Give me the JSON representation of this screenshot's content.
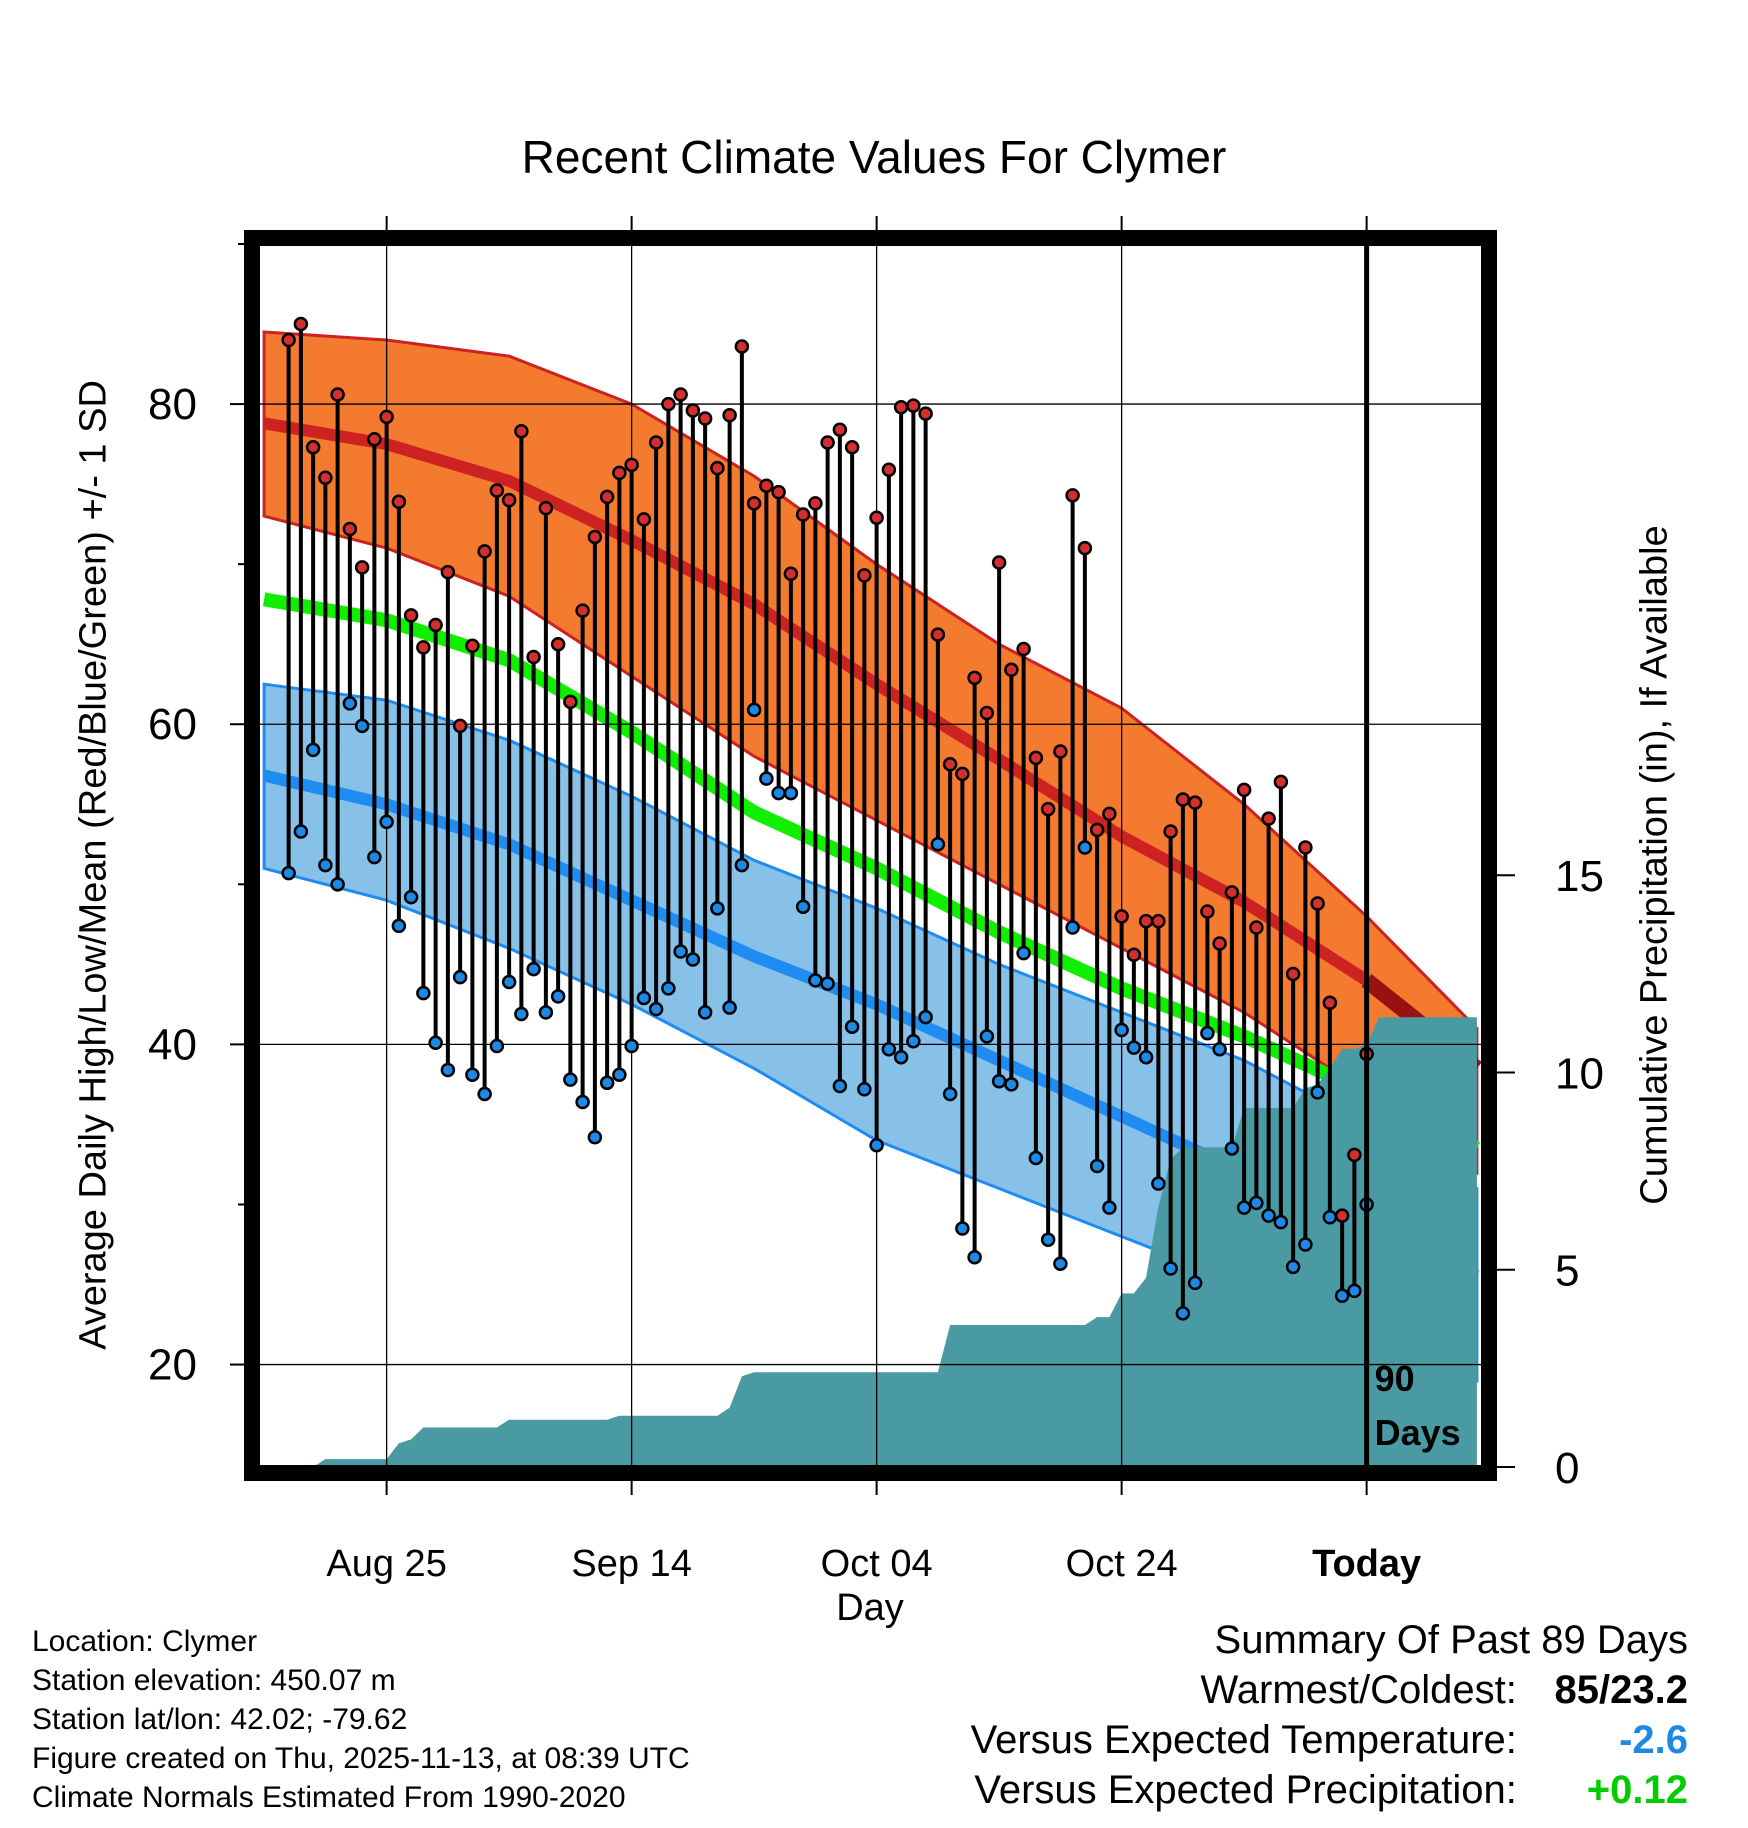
{
  "chart_data": {
    "type": "line",
    "title": "Recent Climate Values For Clymer",
    "ylabel": "Average Daily High/Low/Mean (Red/Blue/Green) +/- 1 SD",
    "y2label": "Cumulative Precipitation (in), If Available",
    "xlabel": "Day",
    "ylim": [
      13.6,
      90
    ],
    "y2lim": [
      0,
      31
    ],
    "xlim": [
      -90.5,
      9.5
    ],
    "yticks": [
      20,
      40,
      60,
      80
    ],
    "y2ticks": [
      0,
      5,
      10,
      15
    ],
    "xticks": [
      {
        "day": -80,
        "label": "Aug 25"
      },
      {
        "day": -60,
        "label": "Sep 14"
      },
      {
        "day": -40,
        "label": "Oct 04"
      },
      {
        "day": -20,
        "label": "Oct 24"
      },
      {
        "day": 0,
        "label": "Today"
      }
    ],
    "today_label": "90 Days",
    "colors": {
      "high_band": "#f47a30",
      "high_line": "#cc2222",
      "high_today": "#991111",
      "low_band": "#87c1e8",
      "low_line": "#1e8cf0",
      "mean_line": "#11ee00",
      "precip": "#4a9aa3",
      "high_dot": "#d32f2f",
      "low_dot": "#1e88e5"
    },
    "normal_days": [
      -90,
      -80,
      -70,
      -60,
      -50,
      -40,
      -30,
      -20,
      -10,
      0,
      9
    ],
    "normal_high": [
      78.8,
      77.5,
      75.2,
      71.5,
      67.5,
      62.5,
      57.8,
      53.0,
      48.9,
      44.0,
      38.5
    ],
    "normal_high_upper": [
      84.5,
      84.0,
      83.0,
      80.0,
      75.5,
      70.0,
      65.0,
      61.0,
      55.0,
      48.0,
      41.0
    ],
    "normal_high_lower": [
      73.0,
      71.0,
      68.0,
      63.0,
      58.0,
      54.0,
      50.0,
      46.0,
      42.0,
      37.0,
      32.0
    ],
    "normal_low": [
      56.8,
      55.0,
      52.5,
      49.0,
      45.5,
      42.5,
      39.0,
      35.5,
      32.0,
      28.5,
      25.5
    ],
    "normal_low_upper": [
      62.5,
      61.5,
      59.0,
      55.5,
      51.5,
      48.5,
      45.0,
      42.0,
      39.0,
      35.0,
      31.0
    ],
    "normal_low_lower": [
      51.0,
      49.0,
      46.0,
      42.5,
      38.5,
      34.0,
      31.0,
      28.0,
      25.0,
      22.0,
      19.0
    ],
    "normal_mean": [
      67.8,
      66.5,
      64.0,
      59.5,
      54.5,
      51.0,
      47.0,
      43.5,
      40.5,
      37.0,
      33.5
    ],
    "daily_high": [
      84.0,
      85.0,
      77.3,
      75.4,
      80.6,
      72.2,
      69.8,
      77.8,
      79.2,
      73.9,
      66.8,
      64.8,
      66.2,
      69.5,
      59.9,
      64.9,
      70.8,
      74.6,
      74.0,
      78.3,
      64.2,
      73.5,
      65.0,
      61.4,
      67.1,
      71.7,
      74.2,
      75.7,
      76.2,
      72.8,
      77.6,
      80.0,
      80.6,
      79.6,
      79.1,
      76.0,
      79.3,
      83.6,
      73.8,
      74.9,
      74.5,
      69.4,
      73.1,
      73.8,
      77.6,
      78.4,
      77.3,
      69.3,
      72.9,
      75.9,
      79.8,
      79.9,
      79.4,
      65.6,
      57.5,
      56.9,
      62.9,
      60.7,
      70.1,
      63.4,
      64.7,
      57.9,
      54.7,
      58.3,
      74.3,
      71.0,
      53.4,
      54.4,
      48.0,
      45.6,
      47.7,
      47.7,
      53.3,
      55.3,
      55.1,
      48.3,
      46.3,
      49.5,
      55.9,
      47.3,
      54.1,
      56.4,
      44.4,
      52.3,
      48.8,
      42.6,
      29.3,
      33.1,
      39.4
    ],
    "daily_low": [
      50.7,
      53.3,
      58.4,
      51.2,
      50.0,
      61.3,
      59.9,
      51.7,
      53.9,
      47.4,
      49.2,
      43.2,
      40.1,
      38.4,
      44.2,
      38.1,
      36.9,
      39.9,
      43.9,
      41.9,
      44.7,
      42.0,
      43.0,
      37.8,
      36.4,
      34.2,
      37.6,
      38.1,
      39.9,
      42.9,
      42.2,
      43.5,
      45.8,
      45.3,
      42.0,
      48.5,
      42.3,
      51.2,
      60.9,
      56.6,
      55.7,
      55.7,
      48.6,
      44.0,
      43.8,
      37.4,
      41.1,
      37.2,
      33.7,
      39.7,
      39.2,
      40.2,
      41.7,
      52.5,
      36.9,
      28.5,
      26.7,
      40.5,
      37.7,
      37.5,
      45.7,
      32.9,
      27.8,
      26.3,
      47.3,
      52.3,
      32.4,
      29.8,
      40.9,
      39.8,
      39.2,
      31.3,
      26.0,
      23.2,
      25.1,
      40.7,
      39.7,
      33.5,
      29.8,
      30.1,
      29.3,
      28.9,
      26.1,
      27.5,
      37.0,
      29.2,
      24.3,
      24.6,
      30.0
    ],
    "precip_days": [
      -90,
      -86,
      -85,
      -84,
      -83,
      -82,
      -81,
      -80,
      -79,
      -78,
      -77,
      -76,
      -75,
      -74,
      -73,
      -72,
      -71,
      -70,
      -69,
      -68,
      -67,
      -66,
      -65,
      -64,
      -63,
      -62,
      -61,
      -60,
      -59,
      -58,
      -57,
      -56,
      -55,
      -54,
      -53,
      -52,
      -51,
      -50,
      -49,
      -48,
      -47,
      -46,
      -45,
      -44,
      -43,
      -42,
      -41,
      -40,
      -39,
      -38,
      -37,
      -36,
      -35,
      -34,
      -33,
      -32,
      -31,
      -30,
      -29,
      -28,
      -27,
      -26,
      -25,
      -24,
      -23,
      -22,
      -21,
      -20,
      -19,
      -18,
      -17,
      -16,
      -15,
      -14,
      -13,
      -12,
      -11,
      -10,
      -9,
      -8,
      -7,
      -6,
      -5,
      -4,
      -3,
      -2,
      -1,
      0,
      1,
      9
    ],
    "precip_values": [
      0.0,
      0.0,
      0.2,
      0.2,
      0.2,
      0.2,
      0.2,
      0.2,
      0.6,
      0.7,
      1.0,
      1.0,
      1.0,
      1.0,
      1.0,
      1.0,
      1.0,
      1.2,
      1.2,
      1.2,
      1.2,
      1.2,
      1.2,
      1.2,
      1.2,
      1.2,
      1.3,
      1.3,
      1.3,
      1.3,
      1.3,
      1.3,
      1.3,
      1.3,
      1.3,
      1.5,
      2.3,
      2.4,
      2.4,
      2.4,
      2.4,
      2.4,
      2.4,
      2.4,
      2.4,
      2.4,
      2.4,
      2.4,
      2.4,
      2.4,
      2.4,
      2.4,
      2.4,
      3.6,
      3.6,
      3.6,
      3.6,
      3.6,
      3.6,
      3.6,
      3.6,
      3.6,
      3.6,
      3.6,
      3.6,
      3.8,
      3.8,
      4.4,
      4.4,
      4.8,
      6.6,
      7.8,
      8.1,
      8.1,
      8.1,
      8.1,
      8.1,
      9.1,
      9.1,
      9.1,
      9.1,
      9.1,
      9.6,
      9.7,
      10.1,
      10.6,
      10.6,
      10.7,
      11.4,
      11.4
    ]
  },
  "footer": {
    "location": "Location: Clymer",
    "elevation": "Station elevation: 450.07 m",
    "latlon": "Station lat/lon: 42.02; -79.62",
    "created": "Figure created on Thu, 2025-11-13, at 08:39 UTC",
    "normals": "Climate Normals Estimated From 1990-2020"
  },
  "summary": {
    "heading": "Summary Of Past 89 Days",
    "warmest_label": "Warmest/Coldest:",
    "warmest_value": "85/23.2",
    "temp_label": "Versus Expected Temperature:",
    "temp_value": "-2.6",
    "temp_color": "#1e88e5",
    "precip_label": "Versus Expected Precipitation:",
    "precip_value": "+0.12",
    "precip_color": "#00cc00"
  }
}
